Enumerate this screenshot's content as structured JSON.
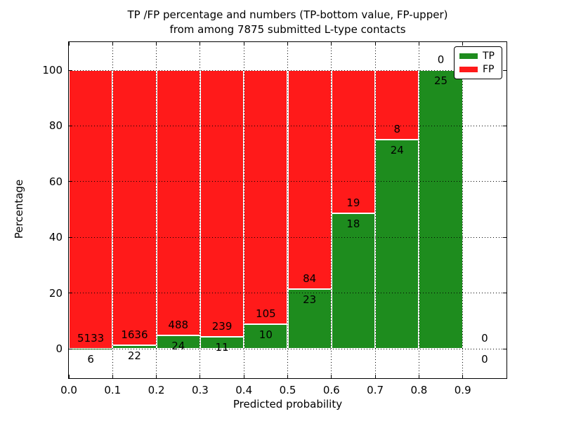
{
  "figure_title": {
    "line1": "TP /FP percentage and numbers (TP-bottom value, FP-upper)",
    "line2": "from among 7875 submitted L-type contacts"
  },
  "axes": {
    "xlabel": "Predicted probability",
    "ylabel": "Percentage"
  },
  "legend": {
    "position": "upper right",
    "items": [
      {
        "label": "TP",
        "color": "#1e8c1e"
      },
      {
        "label": "FP",
        "color": "#ff1a1a"
      }
    ]
  },
  "chart_data": {
    "type": "bar",
    "stacked": true,
    "title": "TP /FP percentage and numbers (TP-bottom value, FP-upper)\nfrom among 7875 submitted L-type contacts",
    "xlabel": "Predicted probability",
    "ylabel": "Percentage",
    "xlim": [
      0.0,
      1.0
    ],
    "ylim": [
      -10,
      110
    ],
    "grid": true,
    "grid_style": "dotted",
    "legend_position": "upper right",
    "total_contacts": 7875,
    "x_tick_labels": [
      "0.0",
      "0.1",
      "0.2",
      "0.3",
      "0.4",
      "0.5",
      "0.6",
      "0.7",
      "0.8",
      "0.9"
    ],
    "y_tick_values": [
      0,
      20,
      40,
      60,
      80,
      100
    ],
    "colors": {
      "tp": "#1e8c1e",
      "fp": "#ff1a1a",
      "bar_edge": "#ffffff"
    },
    "series": [
      {
        "name": "TP",
        "values": [
          6,
          22,
          24,
          11,
          10,
          23,
          18,
          24,
          25,
          0
        ]
      },
      {
        "name": "FP",
        "values": [
          5133,
          1636,
          488,
          239,
          105,
          84,
          19,
          8,
          0,
          0
        ]
      }
    ],
    "bins": [
      {
        "x0": 0.0,
        "x1": 0.1,
        "tp": 6,
        "fp": 5133,
        "tp_pct": 0.12
      },
      {
        "x0": 0.1,
        "x1": 0.2,
        "tp": 22,
        "fp": 1636,
        "tp_pct": 1.33
      },
      {
        "x0": 0.2,
        "x1": 0.3,
        "tp": 24,
        "fp": 488,
        "tp_pct": 4.69
      },
      {
        "x0": 0.3,
        "x1": 0.4,
        "tp": 11,
        "fp": 239,
        "tp_pct": 4.4
      },
      {
        "x0": 0.4,
        "x1": 0.5,
        "tp": 10,
        "fp": 105,
        "tp_pct": 8.7
      },
      {
        "x0": 0.5,
        "x1": 0.6,
        "tp": 23,
        "fp": 84,
        "tp_pct": 21.5
      },
      {
        "x0": 0.6,
        "x1": 0.7,
        "tp": 18,
        "fp": 19,
        "tp_pct": 48.65
      },
      {
        "x0": 0.7,
        "x1": 0.8,
        "tp": 24,
        "fp": 8,
        "tp_pct": 75.0
      },
      {
        "x0": 0.8,
        "x1": 0.9,
        "tp": 25,
        "fp": 0,
        "tp_pct": 100.0
      },
      {
        "x0": 0.9,
        "x1": 1.0,
        "tp": 0,
        "fp": 0,
        "tp_pct": 0.0
      }
    ]
  }
}
